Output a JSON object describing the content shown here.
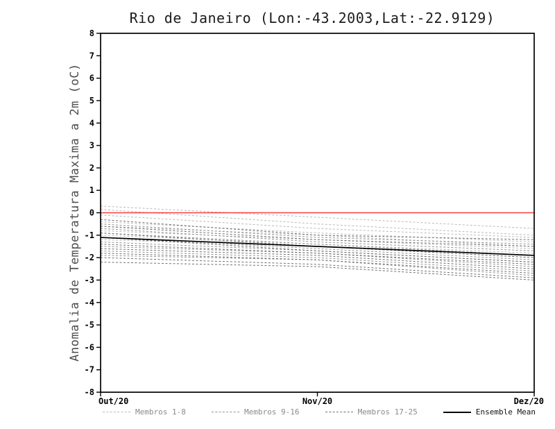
{
  "title": "Rio de Janeiro (Lon:-43.2003,Lat:-22.9129)",
  "ylabel": "Anomalia de Temperatura Maxima a 2m (oC)",
  "chart_data": {
    "type": "line",
    "x": [
      "Out/20",
      "Nov/20",
      "Dez/20"
    ],
    "ylim": [
      -8,
      8
    ],
    "ytick_step": 1,
    "grid": false,
    "legend_position": "bottom",
    "zero_line_color": "#fa3c3c",
    "groups": [
      {
        "name": "Membros 1-8",
        "color": "#b9b9b9",
        "series": [
          [
            0.3,
            -0.2,
            -0.7
          ],
          [
            0.15,
            -0.5,
            -1.0
          ],
          [
            -0.1,
            -0.7,
            -1.1
          ],
          [
            -0.4,
            -0.9,
            -1.3
          ],
          [
            -0.6,
            -1.0,
            -1.5
          ],
          [
            -0.8,
            -1.2,
            -1.6
          ],
          [
            -1.0,
            -1.4,
            -1.8
          ],
          [
            -1.2,
            -1.5,
            -2.0
          ]
        ]
      },
      {
        "name": "Membros 9-16",
        "color": "#929292",
        "series": [
          [
            -0.5,
            -1.1,
            -1.4
          ],
          [
            -0.7,
            -1.3,
            -1.7
          ],
          [
            -0.9,
            -1.4,
            -1.9
          ],
          [
            -1.1,
            -1.6,
            -2.1
          ],
          [
            -1.3,
            -1.7,
            -2.2
          ],
          [
            -1.5,
            -1.8,
            -2.4
          ],
          [
            -1.7,
            -2.0,
            -2.6
          ],
          [
            -1.9,
            -2.1,
            -2.8
          ]
        ]
      },
      {
        "name": "Membros 17-25",
        "color": "#6f6f6f",
        "series": [
          [
            -0.3,
            -1.0,
            -1.2
          ],
          [
            -0.6,
            -1.2,
            -1.5
          ],
          [
            -0.9,
            -1.5,
            -2.0
          ],
          [
            -1.1,
            -1.7,
            -2.2
          ],
          [
            -1.4,
            -1.8,
            -2.3
          ],
          [
            -1.6,
            -1.9,
            -2.5
          ],
          [
            -1.8,
            -2.1,
            -2.7
          ],
          [
            -2.0,
            -2.3,
            -2.9
          ],
          [
            -2.2,
            -2.4,
            -3.0
          ]
        ]
      }
    ],
    "mean": {
      "name": "Ensemble Mean",
      "color": "#000000",
      "values": [
        -1.1,
        -1.5,
        -1.9
      ]
    }
  }
}
